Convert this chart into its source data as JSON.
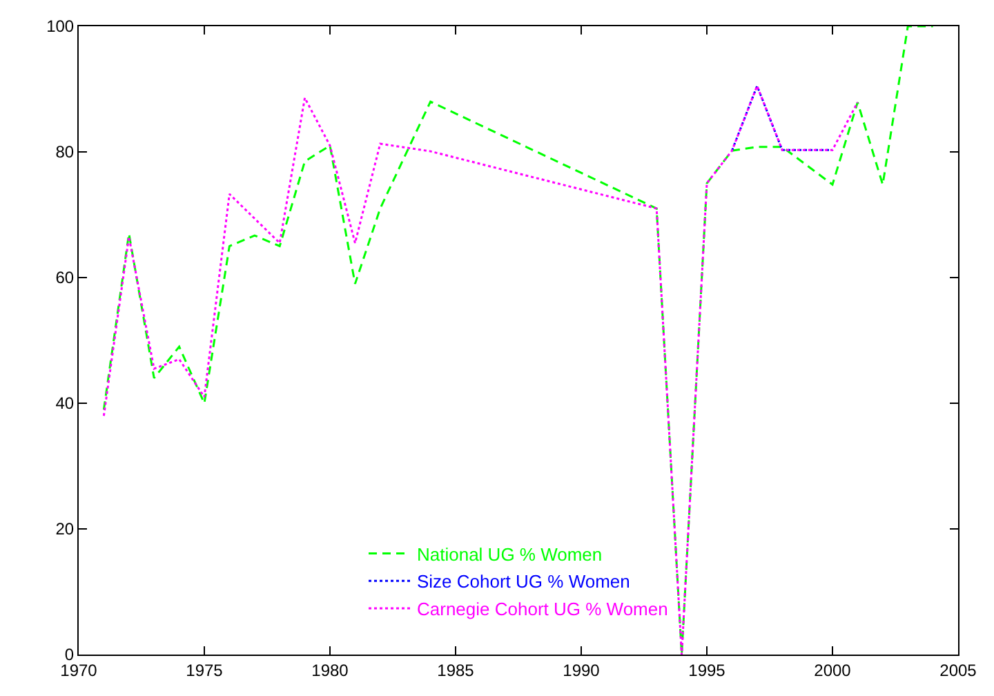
{
  "chart_data": {
    "type": "line",
    "x": [
      1971,
      1972,
      1973,
      1974,
      1975,
      1976,
      1977,
      1978,
      1979,
      1980,
      1981,
      1982,
      1984,
      1993,
      1994,
      1995,
      1996,
      1997,
      1998,
      2000,
      2001,
      2002,
      2003,
      2004
    ],
    "series": [
      {
        "name": "National UG % Women",
        "color": "#00ff00",
        "line_style": "dashed",
        "values": [
          39,
          67,
          44,
          49,
          40,
          65,
          66.7,
          65,
          78.5,
          81,
          59,
          71,
          88,
          71,
          0,
          75,
          80.2,
          80.8,
          80.8,
          74.8,
          87.9,
          74.8,
          100,
          100
        ]
      },
      {
        "name": "Size Cohort UG % Women",
        "color": "#0000ff",
        "line_style": "dotted",
        "values": [
          null,
          null,
          null,
          null,
          null,
          null,
          null,
          null,
          null,
          null,
          null,
          null,
          null,
          null,
          null,
          null,
          80.2,
          90.5,
          80.3,
          80.3,
          null,
          null,
          null,
          null
        ]
      },
      {
        "name": "Carnegie Cohort UG % Women",
        "color": "#ff00ff",
        "line_style": "dotted",
        "x": [
          1971,
          1972,
          1973,
          1974,
          1975,
          1976,
          1978,
          1979,
          1980,
          1981,
          1982,
          1984,
          1993,
          1994,
          1995,
          1996,
          1997,
          1998,
          2000,
          2001
        ],
        "values": [
          38,
          66.5,
          45.5,
          47,
          41,
          73.3,
          65.5,
          88.6,
          81,
          65.5,
          81.3,
          80.1,
          71,
          0,
          75,
          80.2,
          90.5,
          80.3,
          80.3,
          87.9
        ]
      }
    ],
    "xlim": [
      1970,
      2005
    ],
    "xticks": [
      1970,
      1975,
      1980,
      1985,
      1990,
      1995,
      2000,
      2005
    ],
    "ylim": [
      0,
      100
    ],
    "yticks": [
      0,
      20,
      40,
      60,
      80,
      100
    ],
    "grid": false,
    "legend": "bottom",
    "marker": "none"
  }
}
